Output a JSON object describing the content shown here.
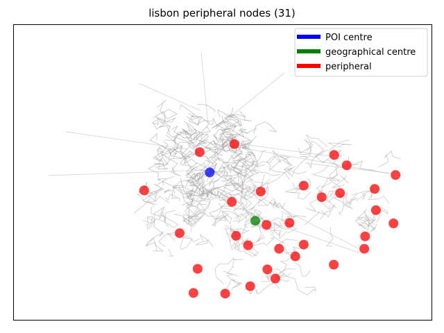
{
  "chart_data": {
    "type": "scatter",
    "title": "lisbon peripheral nodes (31)",
    "xlabel": "",
    "ylabel": "",
    "xlim": [
      0,
      100
    ],
    "ylim": [
      0,
      100
    ],
    "axis_ticks": false,
    "grid": false,
    "legend_position": "top-right",
    "background_network": "street network (gray lines)",
    "series": [
      {
        "name": "POI centre",
        "color": "#0000ff",
        "points": [
          [
            46.9,
            50.0
          ]
        ]
      },
      {
        "name": "geographical centre",
        "color": "#008000",
        "points": [
          [
            57.8,
            33.6
          ]
        ]
      },
      {
        "name": "peripheral",
        "color": "#ff0000",
        "points": [
          [
            44.5,
            56.9
          ],
          [
            52.8,
            59.6
          ],
          [
            76.7,
            55.9
          ],
          [
            79.7,
            52.4
          ],
          [
            91.4,
            49.1
          ],
          [
            69.4,
            45.5
          ],
          [
            78.1,
            43.0
          ],
          [
            86.4,
            44.4
          ],
          [
            31.2,
            43.9
          ],
          [
            59.1,
            43.5
          ],
          [
            52.2,
            40.0
          ],
          [
            73.7,
            41.6
          ],
          [
            86.7,
            37.2
          ],
          [
            60.5,
            32.2
          ],
          [
            66.0,
            32.9
          ],
          [
            90.9,
            32.7
          ],
          [
            39.7,
            29.4
          ],
          [
            53.2,
            28.5
          ],
          [
            56.1,
            25.3
          ],
          [
            69.4,
            25.5
          ],
          [
            84.1,
            28.3
          ],
          [
            63.5,
            24.1
          ],
          [
            67.4,
            21.5
          ],
          [
            83.9,
            24.1
          ],
          [
            76.6,
            18.7
          ],
          [
            44.0,
            17.3
          ],
          [
            60.7,
            17.1
          ],
          [
            62.6,
            14.0
          ],
          [
            56.6,
            11.4
          ],
          [
            43.0,
            9.1
          ],
          [
            50.6,
            8.9
          ]
        ]
      }
    ]
  }
}
